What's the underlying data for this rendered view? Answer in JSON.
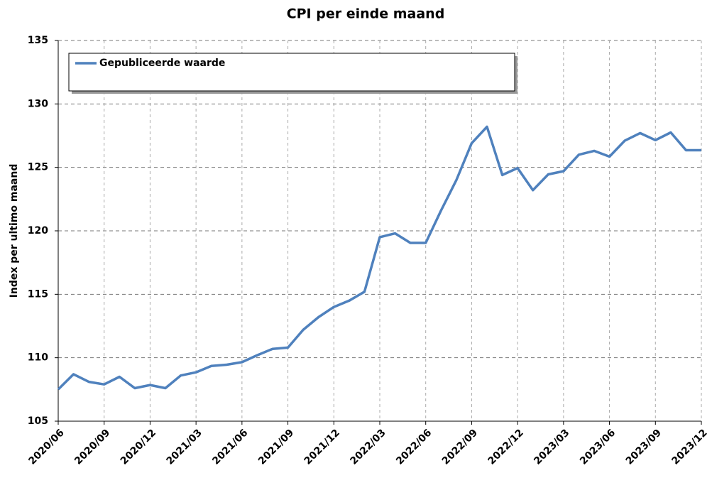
{
  "chart_data": {
    "type": "line",
    "title": "CPI per einde maand",
    "y_label": "Index per ultimo maand",
    "categories": [
      "2020/06",
      null,
      null,
      "2020/09",
      null,
      null,
      "2020/12",
      null,
      null,
      "2021/03",
      null,
      null,
      "2021/06",
      null,
      null,
      "2021/09",
      null,
      null,
      "2021/12",
      null,
      null,
      "2022/03",
      null,
      null,
      "2022/06",
      null,
      null,
      "2022/09",
      null,
      null,
      "2022/12",
      null,
      null,
      "2023/03",
      null,
      null,
      "2023/06",
      null,
      null,
      "2023/09",
      null,
      null,
      "2023/12"
    ],
    "series": [
      {
        "name": "Gepubliceerde waarde",
        "color": "#4f81bd",
        "values": [
          107.5,
          108.7,
          108.1,
          107.9,
          108.5,
          107.6,
          107.85,
          107.6,
          108.6,
          108.85,
          109.35,
          109.45,
          109.65,
          110.2,
          110.7,
          110.8,
          112.2,
          113.2,
          114.0,
          114.5,
          115.2,
          119.5,
          119.8,
          119.05,
          119.05,
          121.6,
          124.0,
          126.9,
          128.2,
          124.4,
          124.95,
          123.2,
          124.45,
          124.7,
          126.0,
          126.3,
          125.85,
          127.1,
          127.7,
          127.15,
          127.75,
          126.35,
          126.35
        ]
      }
    ],
    "ylim": [
      105,
      135
    ],
    "yticks": [
      105,
      110,
      115,
      120,
      125,
      130,
      135
    ],
    "grid": true
  }
}
